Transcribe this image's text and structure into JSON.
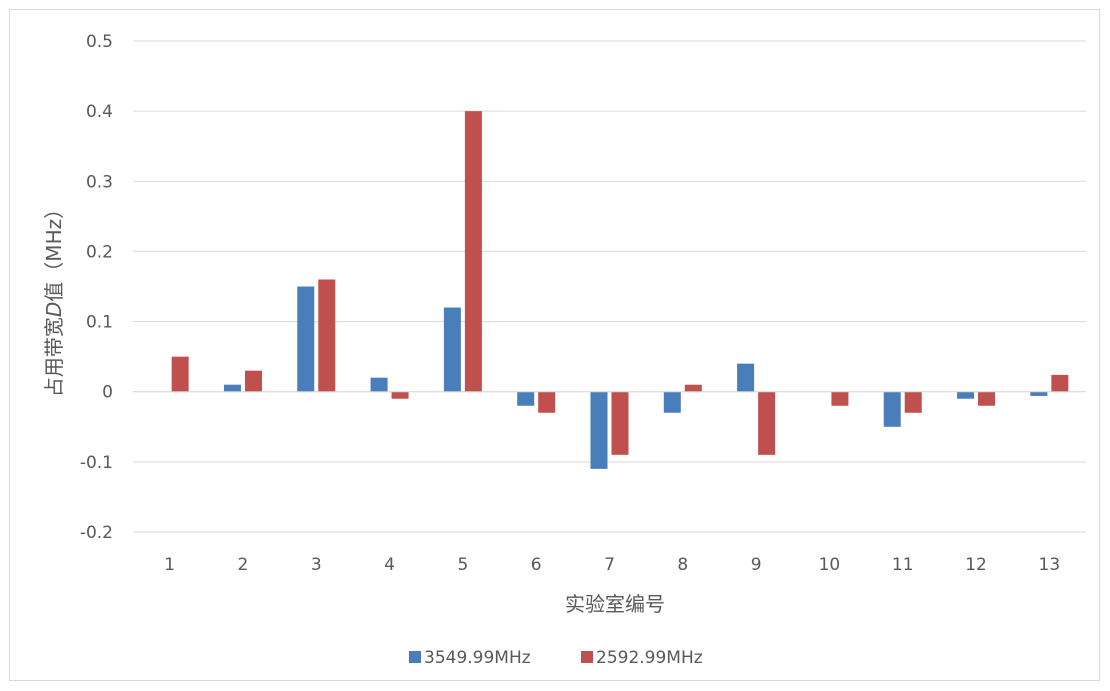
{
  "chart_data": {
    "type": "bar",
    "title": "",
    "xlabel": "实验室编号",
    "ylabel_parts": [
      "占用带宽",
      "D",
      "值（MHz）"
    ],
    "categories": [
      "1",
      "2",
      "3",
      "4",
      "5",
      "6",
      "7",
      "8",
      "9",
      "10",
      "11",
      "12",
      "13"
    ],
    "ylim": [
      -0.2,
      0.5
    ],
    "yticks": [
      -0.2,
      -0.1,
      0,
      0.1,
      0.2,
      0.3,
      0.4,
      0.5
    ],
    "ytick_labels": [
      "-0.2",
      "-0.1",
      "0",
      "0.1",
      "0.2",
      "0.3",
      "0.4",
      "0.5"
    ],
    "grid": true,
    "legend_position": "bottom",
    "series": [
      {
        "name": "3549.99MHz",
        "color": "#4a7ebb",
        "values": [
          0,
          0.01,
          0.15,
          0.02,
          0.12,
          -0.02,
          -0.11,
          -0.03,
          0.04,
          0,
          -0.05,
          -0.01,
          -0.006
        ]
      },
      {
        "name": "2592.99MHz",
        "color": "#c0504d",
        "values": [
          0.05,
          0.03,
          0.16,
          -0.01,
          0.4,
          -0.03,
          -0.09,
          0.01,
          -0.09,
          -0.02,
          -0.03,
          -0.02,
          0.024
        ]
      }
    ]
  }
}
